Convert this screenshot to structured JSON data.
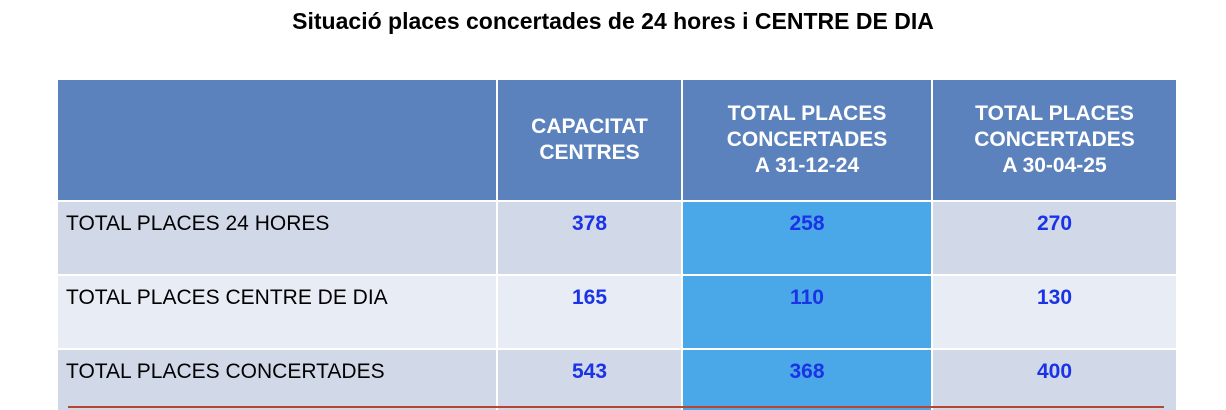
{
  "title": "Situació places concertades de 24 hores i CENTRE DE DIA",
  "table": {
    "headers": [
      [],
      [
        "CAPACITAT",
        "CENTRES"
      ],
      [
        "TOTAL PLACES",
        "CONCERTADES",
        "A 31-12-24"
      ],
      [
        "TOTAL PLACES",
        "CONCERTADES",
        "A 30-04-25"
      ]
    ],
    "rows": [
      {
        "label": "TOTAL PLACES 24 HORES",
        "values": [
          "378",
          "258",
          "270"
        ]
      },
      {
        "label": "TOTAL PLACES CENTRE DE DIA",
        "values": [
          "165",
          "110",
          "130"
        ]
      },
      {
        "label": "TOTAL PLACES CONCERTADES",
        "values": [
          "543",
          "368",
          "400"
        ]
      }
    ]
  },
  "colors": {
    "header_bg": "#5b82bd",
    "row_bg": "#d1d9e9",
    "row_alt_bg": "#e8ecf4",
    "highlight_col_bg": "#4aa8e8",
    "number_text": "#1a33e6",
    "bottom_rule": "#b9442f"
  }
}
